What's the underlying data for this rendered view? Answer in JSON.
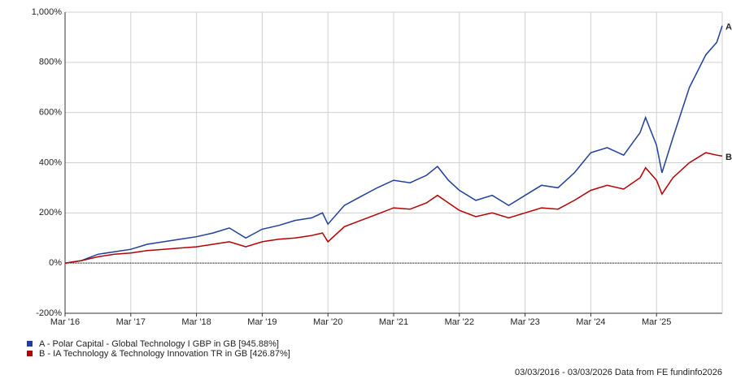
{
  "chart_data": {
    "type": "line",
    "x": [
      "2016-03",
      "2016-06",
      "2016-09",
      "2016-12",
      "2017-03",
      "2017-06",
      "2017-09",
      "2017-12",
      "2018-03",
      "2018-06",
      "2018-09",
      "2018-12",
      "2019-03",
      "2019-06",
      "2019-09",
      "2019-12",
      "2020-02",
      "2020-03",
      "2020-06",
      "2020-09",
      "2020-12",
      "2021-03",
      "2021-06",
      "2021-09",
      "2021-11",
      "2022-01",
      "2022-03",
      "2022-06",
      "2022-09",
      "2022-12",
      "2023-03",
      "2023-06",
      "2023-09",
      "2023-12",
      "2024-03",
      "2024-06",
      "2024-09",
      "2024-12",
      "2025-01",
      "2025-03",
      "2025-04",
      "2025-06",
      "2025-09",
      "2025-12",
      "2026-02",
      "2026-03"
    ],
    "series": [
      {
        "name": "A - Polar Capital - Global Technology I GBP in GB [945.88%]",
        "end_label": "A",
        "color": "#1f3f99",
        "values": [
          0,
          10,
          35,
          45,
          55,
          75,
          85,
          95,
          105,
          120,
          140,
          100,
          135,
          150,
          170,
          180,
          200,
          155,
          230,
          265,
          300,
          330,
          320,
          350,
          385,
          330,
          290,
          250,
          270,
          230,
          270,
          310,
          300,
          360,
          440,
          460,
          430,
          520,
          580,
          470,
          360,
          500,
          700,
          830,
          880,
          945.88
        ]
      },
      {
        "name": "B - IA Technology & Technology Innovation TR in GB [426.87%]",
        "end_label": "B",
        "color": "#b30000",
        "values": [
          0,
          10,
          25,
          35,
          40,
          50,
          55,
          60,
          65,
          75,
          85,
          65,
          85,
          95,
          100,
          110,
          120,
          85,
          145,
          170,
          195,
          220,
          215,
          240,
          270,
          240,
          210,
          185,
          200,
          180,
          200,
          220,
          215,
          250,
          290,
          310,
          295,
          340,
          380,
          330,
          275,
          340,
          400,
          440,
          430,
          426.87
        ]
      }
    ],
    "xlim": [
      "2016-03",
      "2026-03"
    ],
    "xticks": [
      {
        "value": "2016-03",
        "label": "Mar '16"
      },
      {
        "value": "2017-03",
        "label": "Mar '17"
      },
      {
        "value": "2018-03",
        "label": "Mar '18"
      },
      {
        "value": "2019-03",
        "label": "Mar '19"
      },
      {
        "value": "2020-03",
        "label": "Mar '20"
      },
      {
        "value": "2021-03",
        "label": "Mar '21"
      },
      {
        "value": "2022-03",
        "label": "Mar '22"
      },
      {
        "value": "2023-03",
        "label": "Mar '23"
      },
      {
        "value": "2024-03",
        "label": "Mar '24"
      },
      {
        "value": "2025-03",
        "label": "Mar '25"
      }
    ],
    "ylim": [
      -200,
      1000
    ],
    "yticks": [
      {
        "value": -200,
        "label": "-200%"
      },
      {
        "value": 0,
        "label": "0%"
      },
      {
        "value": 200,
        "label": "200%"
      },
      {
        "value": 400,
        "label": "400%"
      },
      {
        "value": 600,
        "label": "600%"
      },
      {
        "value": 800,
        "label": "800%"
      },
      {
        "value": 1000,
        "label": "1,000%"
      }
    ],
    "grid": true,
    "footer": "03/03/2016 - 03/03/2026 Data from FE fundinfo2026"
  }
}
